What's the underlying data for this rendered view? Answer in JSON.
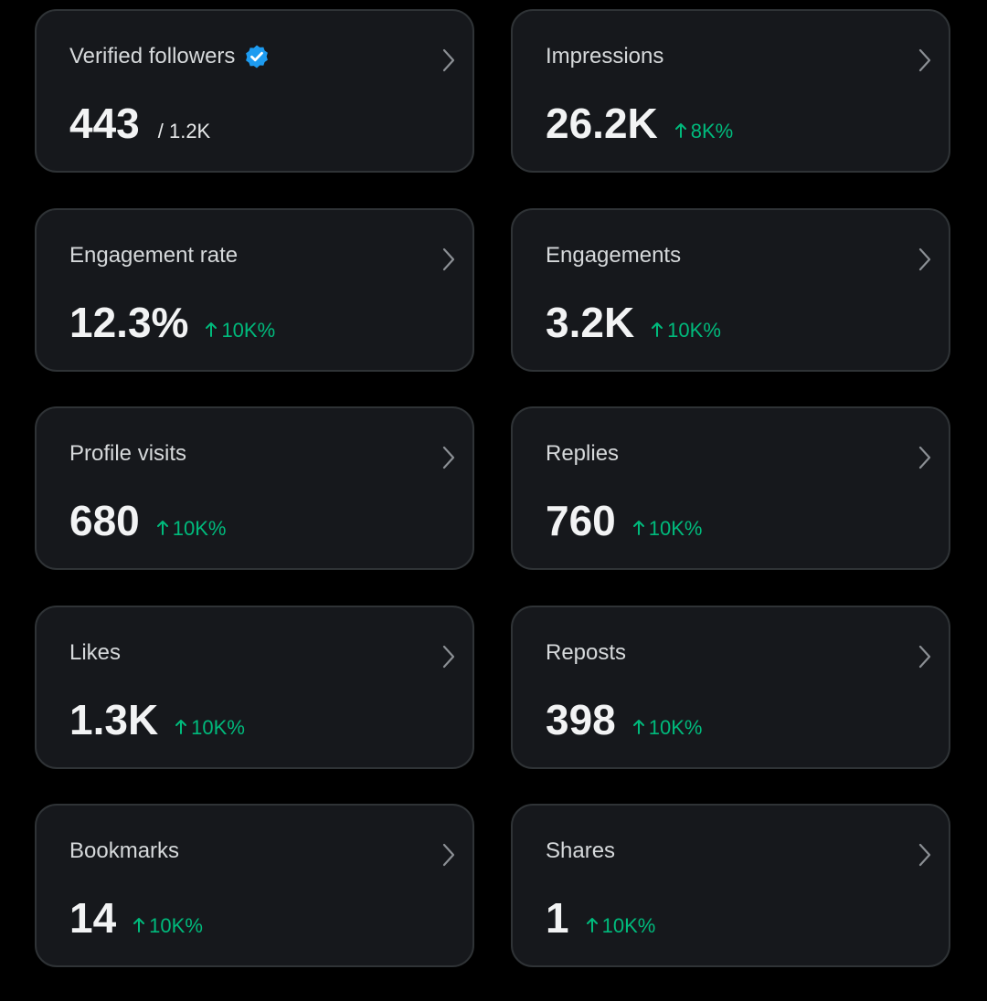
{
  "cards": [
    {
      "label": "Verified followers",
      "value": "443",
      "total": "/ 1.2K"
    },
    {
      "label": "Impressions",
      "value": "26.2K",
      "change": "8K%"
    },
    {
      "label": "Engagement rate",
      "value": "12.3%",
      "change": "10K%"
    },
    {
      "label": "Engagements",
      "value": "3.2K",
      "change": "10K%"
    },
    {
      "label": "Profile visits",
      "value": "680",
      "change": "10K%"
    },
    {
      "label": "Replies",
      "value": "760",
      "change": "10K%"
    },
    {
      "label": "Likes",
      "value": "1.3K",
      "change": "10K%"
    },
    {
      "label": "Reposts",
      "value": "398",
      "change": "10K%"
    },
    {
      "label": "Bookmarks",
      "value": "14",
      "change": "10K%"
    },
    {
      "label": "Shares",
      "value": "1",
      "change": "10K%"
    }
  ]
}
